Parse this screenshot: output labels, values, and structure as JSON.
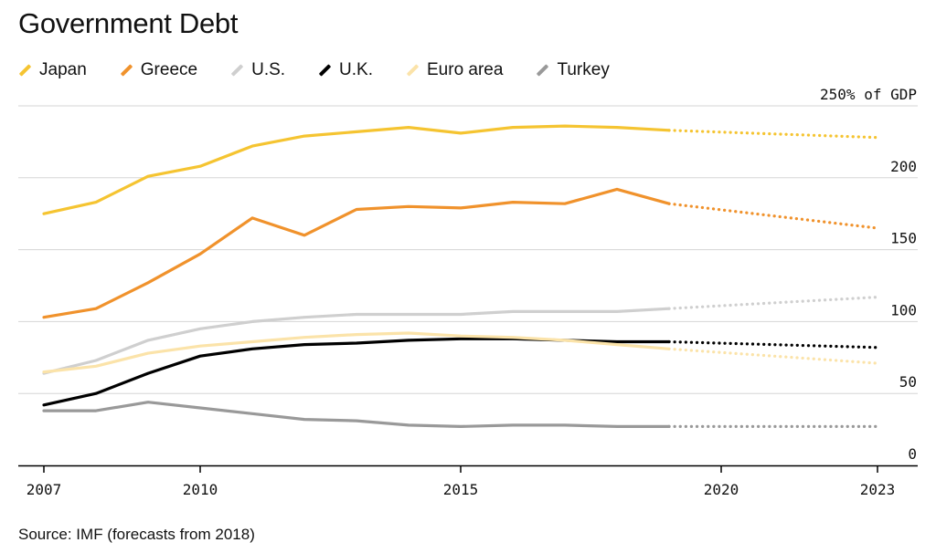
{
  "title": "Government Debt",
  "source": "Source: IMF (forecasts from 2018)",
  "colors": {
    "Japan": "#f5c431",
    "Greece": "#f0922c",
    "U.S.": "#cfcfcf",
    "U.K.": "#000000",
    "Euro area": "#fbe3a9",
    "Turkey": "#999999",
    "grid": "#d5d5d5",
    "axis": "#000000"
  },
  "chart_data": {
    "type": "line",
    "title": "Government Debt",
    "ylabel": "% of GDP",
    "ylim": [
      0,
      250
    ],
    "xlim": [
      2007,
      2023
    ],
    "grid": true,
    "legend_placement": "top",
    "x_ticks": [
      2007,
      2010,
      2015,
      2020,
      2023
    ],
    "y_ticks": [
      0,
      50,
      100,
      150,
      200,
      250
    ],
    "y_tick_labels": [
      "0",
      "50",
      "100",
      "150",
      "200",
      "250% of GDP"
    ],
    "forecast_from": 2018,
    "actual_through": 2019,
    "series": [
      {
        "name": "Japan",
        "x": [
          2007,
          2008,
          2009,
          2010,
          2011,
          2012,
          2013,
          2014,
          2015,
          2016,
          2017,
          2018,
          2019,
          2023
        ],
        "values": [
          175,
          183,
          201,
          208,
          222,
          229,
          232,
          235,
          231,
          235,
          236,
          235,
          233,
          228
        ]
      },
      {
        "name": "Greece",
        "x": [
          2007,
          2008,
          2009,
          2010,
          2011,
          2012,
          2013,
          2014,
          2015,
          2016,
          2017,
          2018,
          2019,
          2023
        ],
        "values": [
          103,
          109,
          127,
          147,
          172,
          160,
          178,
          180,
          179,
          183,
          182,
          192,
          182,
          165
        ]
      },
      {
        "name": "U.S.",
        "x": [
          2007,
          2008,
          2009,
          2010,
          2011,
          2012,
          2013,
          2014,
          2015,
          2016,
          2017,
          2018,
          2019,
          2023
        ],
        "values": [
          64,
          73,
          87,
          95,
          100,
          103,
          105,
          105,
          105,
          107,
          107,
          107,
          109,
          117
        ]
      },
      {
        "name": "U.K.",
        "x": [
          2007,
          2008,
          2009,
          2010,
          2011,
          2012,
          2013,
          2014,
          2015,
          2016,
          2017,
          2018,
          2019,
          2023
        ],
        "values": [
          42,
          50,
          64,
          76,
          81,
          84,
          85,
          87,
          88,
          88,
          87,
          86,
          86,
          82
        ]
      },
      {
        "name": "Euro area",
        "x": [
          2007,
          2008,
          2009,
          2010,
          2011,
          2012,
          2013,
          2014,
          2015,
          2016,
          2017,
          2018,
          2019,
          2023
        ],
        "values": [
          65,
          69,
          78,
          83,
          86,
          89,
          91,
          92,
          90,
          89,
          87,
          84,
          81,
          71
        ]
      },
      {
        "name": "Turkey",
        "x": [
          2007,
          2008,
          2009,
          2010,
          2011,
          2012,
          2013,
          2014,
          2015,
          2016,
          2017,
          2018,
          2019,
          2023
        ],
        "values": [
          38,
          38,
          44,
          40,
          36,
          32,
          31,
          28,
          27,
          28,
          28,
          27,
          27,
          27
        ]
      }
    ]
  }
}
